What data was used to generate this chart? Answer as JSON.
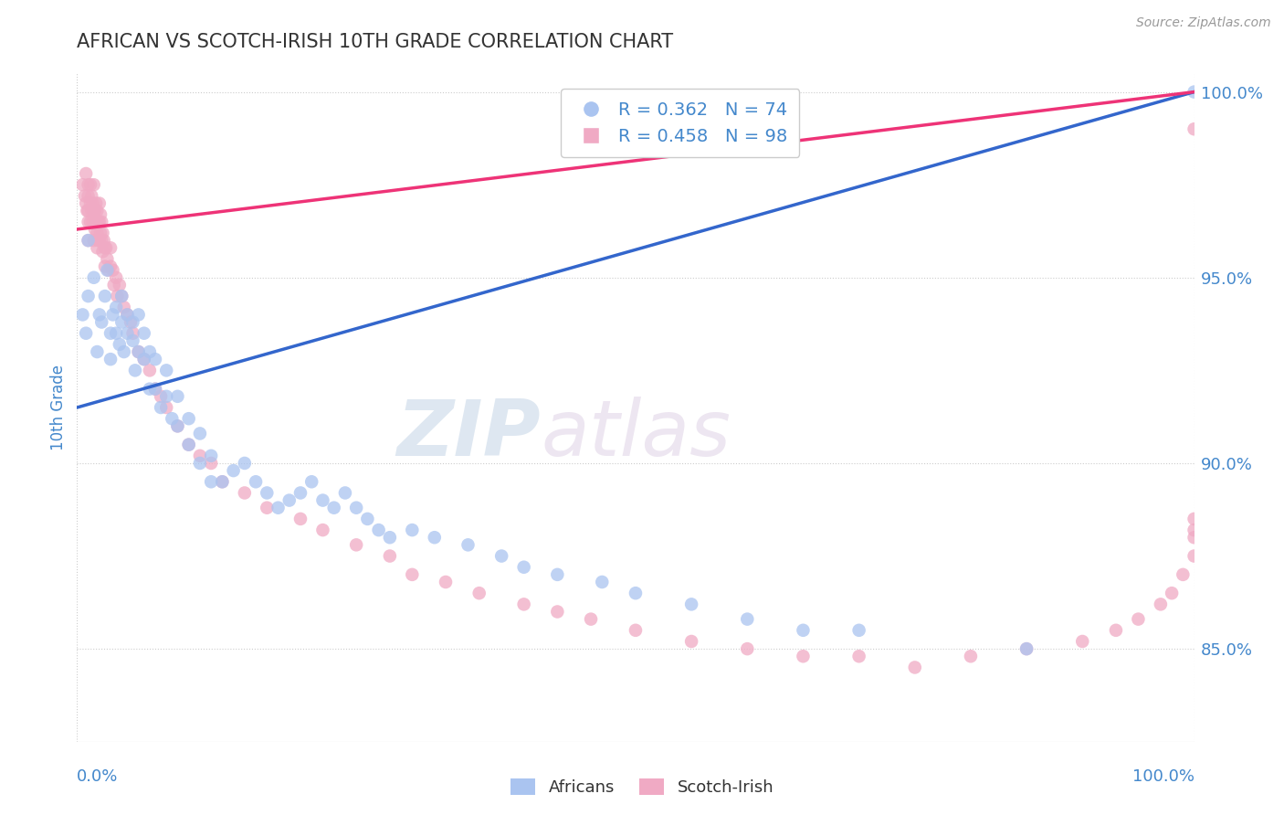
{
  "title": "AFRICAN VS SCOTCH-IRISH 10TH GRADE CORRELATION CHART",
  "source": "Source: ZipAtlas.com",
  "ylabel": "10th Grade",
  "xmin": 0.0,
  "xmax": 1.0,
  "ymin": 0.825,
  "ymax": 1.005,
  "right_yticks": [
    0.85,
    0.9,
    0.95,
    1.0
  ],
  "right_yticklabels": [
    "85.0%",
    "90.0%",
    "95.0%",
    "100.0%"
  ],
  "africans_color": "#aac4f0",
  "scotch_color": "#f0aac4",
  "trendline_african_color": "#3366cc",
  "trendline_scotch_color": "#ee3377",
  "legend_african_label": "Africans",
  "legend_scotch_label": "Scotch-Irish",
  "r_african": "0.362",
  "n_african": "74",
  "r_scotch": "0.458",
  "n_scotch": "98",
  "africans_x": [
    0.005,
    0.008,
    0.01,
    0.01,
    0.015,
    0.018,
    0.02,
    0.022,
    0.025,
    0.027,
    0.03,
    0.03,
    0.032,
    0.035,
    0.035,
    0.038,
    0.04,
    0.04,
    0.042,
    0.045,
    0.045,
    0.05,
    0.05,
    0.052,
    0.055,
    0.055,
    0.06,
    0.06,
    0.065,
    0.065,
    0.07,
    0.07,
    0.075,
    0.08,
    0.08,
    0.085,
    0.09,
    0.09,
    0.1,
    0.1,
    0.11,
    0.11,
    0.12,
    0.12,
    0.13,
    0.14,
    0.15,
    0.16,
    0.17,
    0.18,
    0.19,
    0.2,
    0.21,
    0.22,
    0.23,
    0.24,
    0.25,
    0.26,
    0.27,
    0.28,
    0.3,
    0.32,
    0.35,
    0.38,
    0.4,
    0.43,
    0.47,
    0.5,
    0.55,
    0.6,
    0.65,
    0.7,
    0.85,
    1.0
  ],
  "africans_y": [
    0.94,
    0.935,
    0.96,
    0.945,
    0.95,
    0.93,
    0.94,
    0.938,
    0.945,
    0.952,
    0.935,
    0.928,
    0.94,
    0.942,
    0.935,
    0.932,
    0.938,
    0.945,
    0.93,
    0.935,
    0.94,
    0.933,
    0.938,
    0.925,
    0.93,
    0.94,
    0.928,
    0.935,
    0.92,
    0.93,
    0.92,
    0.928,
    0.915,
    0.925,
    0.918,
    0.912,
    0.918,
    0.91,
    0.905,
    0.912,
    0.9,
    0.908,
    0.895,
    0.902,
    0.895,
    0.898,
    0.9,
    0.895,
    0.892,
    0.888,
    0.89,
    0.892,
    0.895,
    0.89,
    0.888,
    0.892,
    0.888,
    0.885,
    0.882,
    0.88,
    0.882,
    0.88,
    0.878,
    0.875,
    0.872,
    0.87,
    0.868,
    0.865,
    0.862,
    0.858,
    0.855,
    0.855,
    0.85,
    1.0
  ],
  "scotch_x": [
    0.005,
    0.007,
    0.008,
    0.008,
    0.009,
    0.01,
    0.01,
    0.01,
    0.01,
    0.01,
    0.012,
    0.012,
    0.012,
    0.013,
    0.013,
    0.014,
    0.014,
    0.015,
    0.015,
    0.015,
    0.016,
    0.016,
    0.017,
    0.017,
    0.018,
    0.018,
    0.018,
    0.019,
    0.019,
    0.02,
    0.02,
    0.02,
    0.021,
    0.021,
    0.022,
    0.022,
    0.023,
    0.023,
    0.024,
    0.025,
    0.025,
    0.026,
    0.027,
    0.028,
    0.03,
    0.03,
    0.032,
    0.033,
    0.035,
    0.036,
    0.038,
    0.04,
    0.042,
    0.045,
    0.048,
    0.05,
    0.055,
    0.06,
    0.065,
    0.07,
    0.075,
    0.08,
    0.09,
    0.1,
    0.11,
    0.12,
    0.13,
    0.15,
    0.17,
    0.2,
    0.22,
    0.25,
    0.28,
    0.3,
    0.33,
    0.36,
    0.4,
    0.43,
    0.46,
    0.5,
    0.55,
    0.6,
    0.65,
    0.7,
    0.75,
    0.8,
    0.85,
    0.9,
    0.93,
    0.95,
    0.97,
    0.98,
    0.99,
    1.0,
    1.0,
    1.0,
    1.0,
    1.0
  ],
  "scotch_y": [
    0.975,
    0.972,
    0.978,
    0.97,
    0.968,
    0.975,
    0.972,
    0.968,
    0.965,
    0.96,
    0.975,
    0.97,
    0.965,
    0.972,
    0.968,
    0.97,
    0.965,
    0.975,
    0.968,
    0.96,
    0.968,
    0.963,
    0.97,
    0.965,
    0.968,
    0.962,
    0.958,
    0.965,
    0.96,
    0.97,
    0.965,
    0.96,
    0.967,
    0.962,
    0.965,
    0.96,
    0.962,
    0.957,
    0.96,
    0.958,
    0.953,
    0.958,
    0.955,
    0.952,
    0.958,
    0.953,
    0.952,
    0.948,
    0.95,
    0.945,
    0.948,
    0.945,
    0.942,
    0.94,
    0.938,
    0.935,
    0.93,
    0.928,
    0.925,
    0.92,
    0.918,
    0.915,
    0.91,
    0.905,
    0.902,
    0.9,
    0.895,
    0.892,
    0.888,
    0.885,
    0.882,
    0.878,
    0.875,
    0.87,
    0.868,
    0.865,
    0.862,
    0.86,
    0.858,
    0.855,
    0.852,
    0.85,
    0.848,
    0.848,
    0.845,
    0.848,
    0.85,
    0.852,
    0.855,
    0.858,
    0.862,
    0.865,
    0.87,
    0.875,
    0.88,
    0.882,
    0.885,
    0.99
  ],
  "watermark_zip": "ZIP",
  "watermark_atlas": "atlas",
  "background_color": "#ffffff",
  "grid_color": "#cccccc",
  "title_color": "#333333",
  "axis_label_color": "#4488cc",
  "tick_color": "#4488cc",
  "legend_text_color": "#4488cc"
}
